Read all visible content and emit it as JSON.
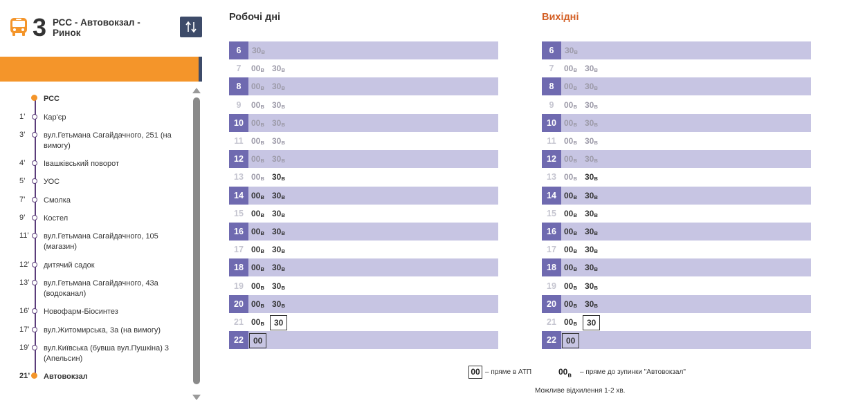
{
  "route": {
    "number": "3",
    "name": "РСС - Автовокзал - Ринок",
    "bus_icon": "bus-icon",
    "swap_icon": "swap-direction-icon"
  },
  "stops": [
    {
      "time": "",
      "name": "РСС",
      "bold": true
    },
    {
      "time": "1’",
      "name": "Кар'єр"
    },
    {
      "time": "3’",
      "name": "вул.Гетьмана Сагайдачного, 251 (на вимогу)"
    },
    {
      "time": "4’",
      "name": "Івашківський поворот"
    },
    {
      "time": "5’",
      "name": "УОС"
    },
    {
      "time": "7’",
      "name": "Смолка"
    },
    {
      "time": "9’",
      "name": "Костел"
    },
    {
      "time": "11’",
      "name": "вул.Гетьмана Сагайдачного, 105 (магазин)"
    },
    {
      "time": "12’",
      "name": "дитячий садок"
    },
    {
      "time": "13’",
      "name": "вул.Гетьмана Сагайдачного, 43а (водоканал)"
    },
    {
      "time": "16’",
      "name": "Новофарм-Біосинтез"
    },
    {
      "time": "17’",
      "name": "вул.Житомирська, 3а (на вимогу)"
    },
    {
      "time": "19’",
      "name": "вул.Київська (бувша вул.Пушкіна) 3 (Апельсин)"
    },
    {
      "time": "21’",
      "name": "Автовокзал",
      "bold": true
    }
  ],
  "schedules": {
    "weekdays": {
      "title": "Робочі дні",
      "rows": [
        {
          "hour": "6",
          "shade": true,
          "minutes": [
            {
              "v": "30",
              "s": "в",
              "past": true,
              "pos": 1
            }
          ]
        },
        {
          "hour": "7",
          "shade": false,
          "minutes": [
            {
              "v": "00",
              "s": "в",
              "past": true
            },
            {
              "v": "30",
              "s": "в",
              "past": true
            }
          ]
        },
        {
          "hour": "8",
          "shade": true,
          "minutes": [
            {
              "v": "00",
              "s": "в",
              "past": true
            },
            {
              "v": "30",
              "s": "в",
              "past": true
            }
          ]
        },
        {
          "hour": "9",
          "shade": false,
          "minutes": [
            {
              "v": "00",
              "s": "в",
              "past": true
            },
            {
              "v": "30",
              "s": "в",
              "past": true
            }
          ]
        },
        {
          "hour": "10",
          "shade": true,
          "minutes": [
            {
              "v": "00",
              "s": "в",
              "past": true
            },
            {
              "v": "30",
              "s": "в",
              "past": true
            }
          ]
        },
        {
          "hour": "11",
          "shade": false,
          "minutes": [
            {
              "v": "00",
              "s": "в",
              "past": true
            },
            {
              "v": "30",
              "s": "в",
              "past": true
            }
          ]
        },
        {
          "hour": "12",
          "shade": true,
          "minutes": [
            {
              "v": "00",
              "s": "в",
              "past": true
            },
            {
              "v": "30",
              "s": "в",
              "past": true
            }
          ]
        },
        {
          "hour": "13",
          "shade": false,
          "minutes": [
            {
              "v": "00",
              "s": "в",
              "past": true
            },
            {
              "v": "30",
              "s": "в",
              "past": false
            }
          ]
        },
        {
          "hour": "14",
          "shade": true,
          "minutes": [
            {
              "v": "00",
              "s": "в"
            },
            {
              "v": "30",
              "s": "в"
            }
          ]
        },
        {
          "hour": "15",
          "shade": false,
          "minutes": [
            {
              "v": "00",
              "s": "в"
            },
            {
              "v": "30",
              "s": "в"
            }
          ]
        },
        {
          "hour": "16",
          "shade": true,
          "minutes": [
            {
              "v": "00",
              "s": "в"
            },
            {
              "v": "30",
              "s": "в"
            }
          ]
        },
        {
          "hour": "17",
          "shade": false,
          "minutes": [
            {
              "v": "00",
              "s": "в"
            },
            {
              "v": "30",
              "s": "в"
            }
          ]
        },
        {
          "hour": "18",
          "shade": true,
          "minutes": [
            {
              "v": "00",
              "s": "в"
            },
            {
              "v": "30",
              "s": "в"
            }
          ]
        },
        {
          "hour": "19",
          "shade": false,
          "minutes": [
            {
              "v": "00",
              "s": "в"
            },
            {
              "v": "30",
              "s": "в"
            }
          ]
        },
        {
          "hour": "20",
          "shade": true,
          "minutes": [
            {
              "v": "00",
              "s": "в"
            },
            {
              "v": "30",
              "s": "в"
            }
          ]
        },
        {
          "hour": "21",
          "shade": false,
          "minutes": [
            {
              "v": "00",
              "s": "в"
            },
            {
              "v": "30",
              "s": "",
              "boxed": true
            }
          ]
        },
        {
          "hour": "22",
          "shade": true,
          "minutes": [
            {
              "v": "00",
              "s": "",
              "boxed": true
            }
          ]
        }
      ]
    },
    "weekends": {
      "title": "Вихідні",
      "rows": [
        {
          "hour": "6",
          "shade": true,
          "minutes": [
            {
              "v": "30",
              "s": "в",
              "past": true
            }
          ]
        },
        {
          "hour": "7",
          "shade": false,
          "minutes": [
            {
              "v": "00",
              "s": "в",
              "past": true
            },
            {
              "v": "30",
              "s": "в",
              "past": true
            }
          ]
        },
        {
          "hour": "8",
          "shade": true,
          "minutes": [
            {
              "v": "00",
              "s": "в",
              "past": true
            },
            {
              "v": "30",
              "s": "в",
              "past": true
            }
          ]
        },
        {
          "hour": "9",
          "shade": false,
          "minutes": [
            {
              "v": "00",
              "s": "в",
              "past": true
            },
            {
              "v": "30",
              "s": "в",
              "past": true
            }
          ]
        },
        {
          "hour": "10",
          "shade": true,
          "minutes": [
            {
              "v": "00",
              "s": "в",
              "past": true
            },
            {
              "v": "30",
              "s": "в",
              "past": true
            }
          ]
        },
        {
          "hour": "11",
          "shade": false,
          "minutes": [
            {
              "v": "00",
              "s": "в",
              "past": true
            },
            {
              "v": "30",
              "s": "в",
              "past": true
            }
          ]
        },
        {
          "hour": "12",
          "shade": true,
          "minutes": [
            {
              "v": "00",
              "s": "в",
              "past": true
            },
            {
              "v": "30",
              "s": "в",
              "past": true
            }
          ]
        },
        {
          "hour": "13",
          "shade": false,
          "minutes": [
            {
              "v": "00",
              "s": "в",
              "past": true
            },
            {
              "v": "30",
              "s": "в",
              "past": false
            }
          ]
        },
        {
          "hour": "14",
          "shade": true,
          "minutes": [
            {
              "v": "00",
              "s": "в"
            },
            {
              "v": "30",
              "s": "в"
            }
          ]
        },
        {
          "hour": "15",
          "shade": false,
          "minutes": [
            {
              "v": "00",
              "s": "в"
            },
            {
              "v": "30",
              "s": "в"
            }
          ]
        },
        {
          "hour": "16",
          "shade": true,
          "minutes": [
            {
              "v": "00",
              "s": "в"
            },
            {
              "v": "30",
              "s": "в"
            }
          ]
        },
        {
          "hour": "17",
          "shade": false,
          "minutes": [
            {
              "v": "00",
              "s": "в"
            },
            {
              "v": "30",
              "s": "в"
            }
          ]
        },
        {
          "hour": "18",
          "shade": true,
          "minutes": [
            {
              "v": "00",
              "s": "в"
            },
            {
              "v": "30",
              "s": "в"
            }
          ]
        },
        {
          "hour": "19",
          "shade": false,
          "minutes": [
            {
              "v": "00",
              "s": "в"
            },
            {
              "v": "30",
              "s": "в"
            }
          ]
        },
        {
          "hour": "20",
          "shade": true,
          "minutes": [
            {
              "v": "00",
              "s": "в"
            },
            {
              "v": "30",
              "s": "в"
            }
          ]
        },
        {
          "hour": "21",
          "shade": false,
          "minutes": [
            {
              "v": "00",
              "s": "в"
            },
            {
              "v": "30",
              "s": "",
              "boxed": true
            }
          ]
        },
        {
          "hour": "22",
          "shade": true,
          "minutes": [
            {
              "v": "00",
              "s": "",
              "boxed": true
            }
          ]
        }
      ]
    }
  },
  "legend": {
    "boxed_sample": "00",
    "boxed_text": "– пряме в АТП",
    "suffix_sample": "00",
    "suffix_letter": "в",
    "suffix_text": "– пряме до зупинки \"Автовокзал\"",
    "note": "Можливе відхилення 1-2 хв."
  },
  "colors": {
    "accent_orange": "#f4952a",
    "hour_cell": "#6f6ab0",
    "row_shade": "#c7c5e3",
    "weekend_title": "#d35f25",
    "swap_button": "#3d4b69"
  }
}
